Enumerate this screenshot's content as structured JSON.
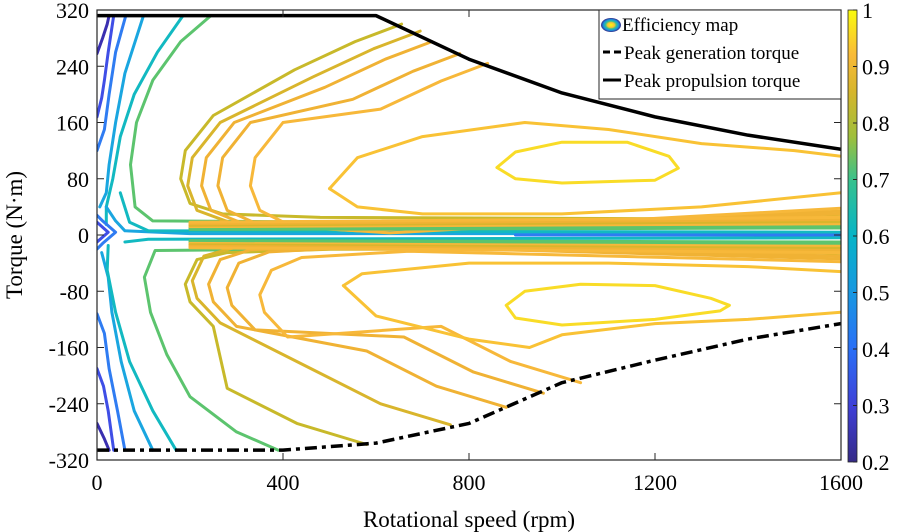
{
  "chart_data": {
    "type": "contour",
    "title": "",
    "xlabel": "Rotational speed (rpm)",
    "ylabel": "Torque (N·m)",
    "xlim": [
      0,
      1600
    ],
    "ylim": [
      -320,
      320
    ],
    "xticks": [
      "0",
      "400",
      "800",
      "1200",
      "1600"
    ],
    "xtick_values": [
      0,
      400,
      800,
      1200,
      1600
    ],
    "yticks": [
      "320",
      "240",
      "160",
      "80",
      "0",
      "-80",
      "-160",
      "-240",
      "-320"
    ],
    "ytick_values": [
      320,
      240,
      160,
      80,
      0,
      -80,
      -160,
      -240,
      -320
    ],
    "grid": false,
    "legend": {
      "placement": "top-right",
      "entries": [
        {
          "label": "Efficiency map",
          "style": "contour-swatch"
        },
        {
          "label": "Peak generation torque",
          "style": "dash-dot"
        },
        {
          "label": "Peak propulsion torque",
          "style": "solid"
        }
      ]
    },
    "colorbar": {
      "colormap": "parula",
      "range": [
        0.2,
        1
      ],
      "ticks": [
        "0.2",
        "0.3",
        "0.4",
        "0.5",
        "0.6",
        "0.7",
        "0.8",
        "0.9",
        "1"
      ],
      "tick_values": [
        0.2,
        0.3,
        0.4,
        0.5,
        0.6,
        0.7,
        0.8,
        0.9,
        1.0
      ]
    },
    "series": [
      {
        "name": "Peak propulsion torque",
        "style": "solid",
        "color": "#000000",
        "x": [
          0,
          600,
          800,
          1000,
          1200,
          1400,
          1600
        ],
        "y": [
          312,
          312,
          250,
          202,
          168,
          142,
          122
        ]
      },
      {
        "name": "Peak generation torque",
        "style": "dash-dot",
        "color": "#000000",
        "x": [
          0,
          400,
          600,
          800,
          1000,
          1200,
          1400,
          1600
        ],
        "y": [
          -306,
          -306,
          -296,
          -268,
          -210,
          -178,
          -148,
          -126
        ]
      }
    ],
    "contour_levels": [
      {
        "level": 0.25,
        "color": "#3a2fb0"
      },
      {
        "level": 0.35,
        "color": "#3f4ee6"
      },
      {
        "level": 0.45,
        "color": "#2f7cf2"
      },
      {
        "level": 0.55,
        "color": "#1aa6e0"
      },
      {
        "level": 0.62,
        "color": "#12b9c1"
      },
      {
        "level": 0.72,
        "color": "#5cc46e"
      },
      {
        "level": 0.8,
        "color": "#c8b92a"
      },
      {
        "level": 0.83,
        "color": "#d9b52c"
      },
      {
        "level": 0.86,
        "color": "#f0b234"
      },
      {
        "level": 0.88,
        "color": "#f7b83a"
      },
      {
        "level": 0.9,
        "color": "#f9c235"
      },
      {
        "level": 0.92,
        "color": "#f8cf2c"
      },
      {
        "level": 0.94,
        "color": "#f9dc27"
      }
    ]
  }
}
